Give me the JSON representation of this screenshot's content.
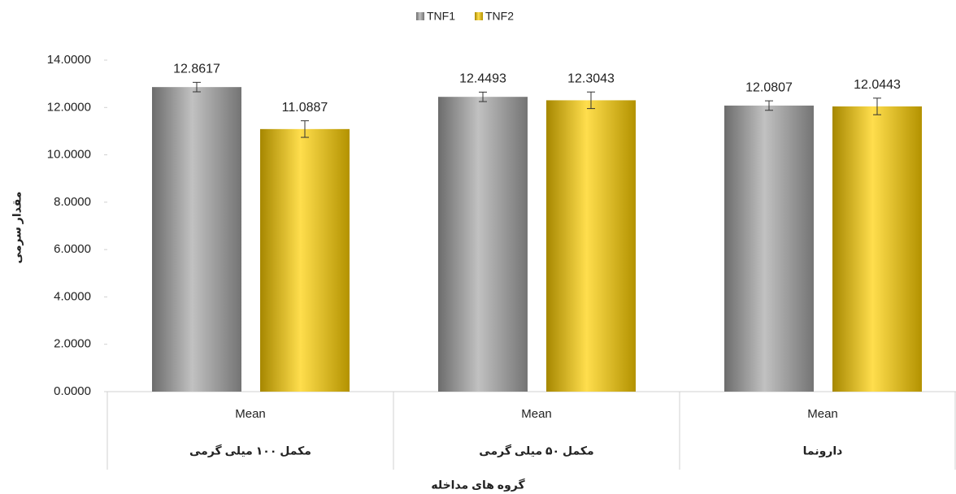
{
  "chart_data": {
    "type": "bar",
    "categories": [
      "Mean",
      "Mean",
      "Mean"
    ],
    "groups": [
      "مکمل ۱۰۰ میلی گرمی",
      "مکمل ۵۰ میلی گرمی",
      "دارونما"
    ],
    "x_label": "گروه های مداخله",
    "y_label": "مقدار سرمی",
    "series": [
      {
        "name": "TNF1",
        "color": "#a6a6a6",
        "values": [
          12.8617,
          12.4493,
          12.0807
        ],
        "errors": [
          0.2,
          0.2,
          0.2
        ]
      },
      {
        "name": "TNF2",
        "color": "#ffd000",
        "values": [
          11.0887,
          12.3043,
          12.0443
        ],
        "errors": [
          0.35,
          0.35,
          0.35
        ]
      }
    ],
    "ylim": [
      0,
      14
    ],
    "yticks": [
      {
        "value": 0,
        "label": "0.0000"
      },
      {
        "value": 2,
        "label": "2.0000"
      },
      {
        "value": 4,
        "label": "4.0000"
      },
      {
        "value": 6,
        "label": "6.0000"
      },
      {
        "value": 8,
        "label": "8.0000"
      },
      {
        "value": 10,
        "label": "10.0000"
      },
      {
        "value": 12,
        "label": "12.0000"
      },
      {
        "value": 14,
        "label": "14.0000"
      }
    ],
    "legend": "top"
  }
}
